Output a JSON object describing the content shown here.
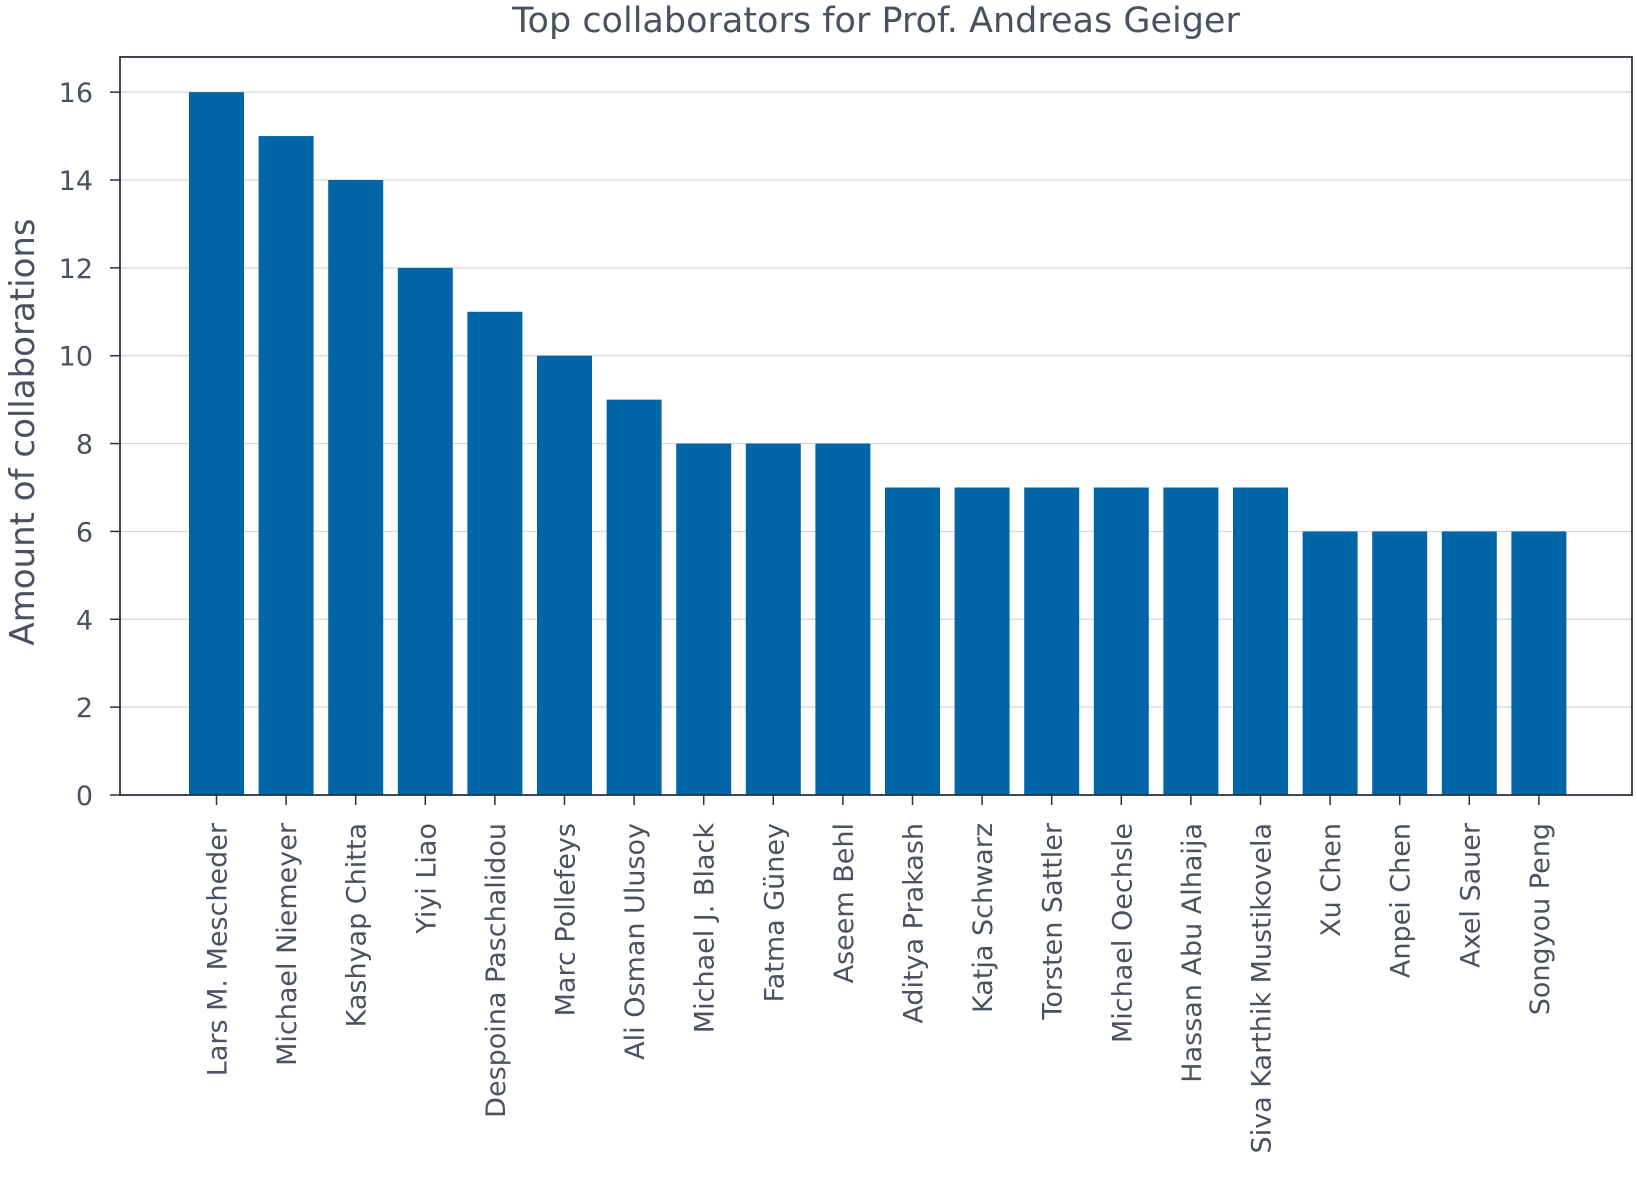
{
  "chart_data": {
    "type": "bar",
    "title": "Top collaborators for Prof. Andreas Geiger",
    "xlabel": "",
    "ylabel": "Amount of collaborations",
    "categories": [
      "Lars M. Mescheder",
      "Michael Niemeyer",
      "Kashyap Chitta",
      "Yiyi Liao",
      "Despoina Paschalidou",
      "Marc Pollefeys",
      "Ali Osman Ulusoy",
      "Michael J. Black",
      "Fatma Güney",
      "Aseem Behl",
      "Aditya Prakash",
      "Katja Schwarz",
      "Torsten Sattler",
      "Michael Oechsle",
      "Hassan Abu Alhaija",
      "Siva Karthik Mustikovela",
      "Xu Chen",
      "Anpei Chen",
      "Axel Sauer",
      "Songyou Peng"
    ],
    "values": [
      16,
      15,
      14,
      12,
      11,
      10,
      9,
      8,
      8,
      8,
      7,
      7,
      7,
      7,
      7,
      7,
      6,
      6,
      6,
      6
    ],
    "ylim": [
      0,
      16.8
    ],
    "yticks": [
      0,
      2,
      4,
      6,
      8,
      10,
      12,
      14,
      16
    ],
    "grid": "horizontal",
    "bar_color": "#0066a8",
    "grid_color": "#d3d6da",
    "axis_color": "#2b3340",
    "text_color": "#4a5160"
  }
}
